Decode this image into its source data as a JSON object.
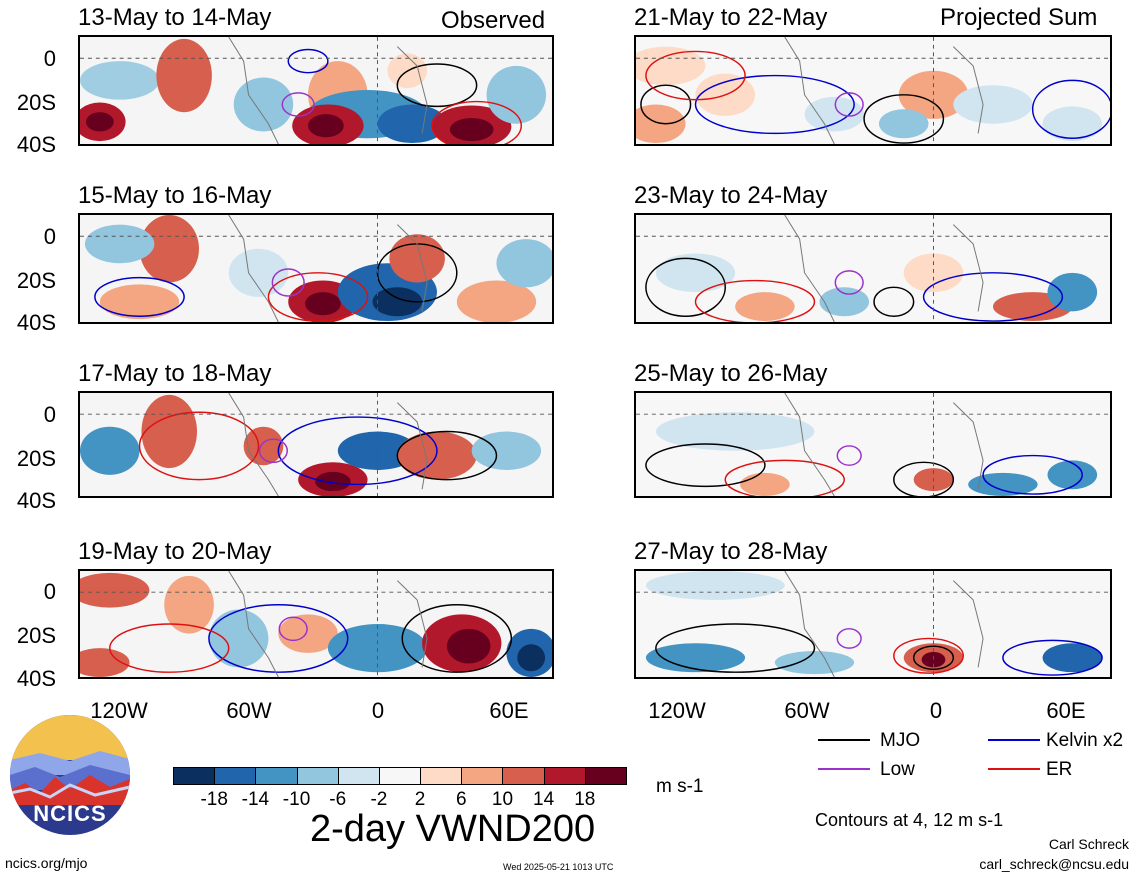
{
  "headers": {
    "observed": "Observed",
    "projected": "Projected Sum"
  },
  "left_panels": [
    {
      "title": "13-May to 14-May"
    },
    {
      "title": "15-May to 16-May"
    },
    {
      "title": "17-May to 18-May"
    },
    {
      "title": "19-May to 20-May"
    }
  ],
  "right_panels": [
    {
      "title": "21-May to 22-May"
    },
    {
      "title": "23-May to 24-May"
    },
    {
      "title": "25-May to 26-May"
    },
    {
      "title": "27-May to 28-May"
    }
  ],
  "y_ticks": [
    "0",
    "20S",
    "40S"
  ],
  "x_ticks": [
    "120W",
    "60W",
    "0",
    "60E"
  ],
  "legend": {
    "items": [
      {
        "label": "MJO",
        "color": "#000000"
      },
      {
        "label": "Kelvin x2",
        "color": "#0000cc"
      },
      {
        "label": "Low",
        "color": "#9933cc"
      },
      {
        "label": "ER",
        "color": "#dd1111"
      }
    ],
    "contour_note": "Contours at 4, 12 m s-1"
  },
  "colorbar": {
    "colors": [
      "#0b2f5e",
      "#2166ac",
      "#4393c3",
      "#92c5de",
      "#d1e5f0",
      "#f7f7f7",
      "#fddbc7",
      "#f4a582",
      "#d6604d",
      "#b2182b",
      "#67001f"
    ],
    "labels": [
      "-18",
      "-14",
      "-10",
      "-6",
      "-2",
      "2",
      "6",
      "10",
      "14",
      "18"
    ],
    "units": "m s-1"
  },
  "main_title": "2-day VWND200",
  "logo_text": "NCICS",
  "footer": {
    "site": "ncics.org/mjo",
    "timestamp": "Wed 2025-05-21 1013 UTC",
    "author": "Carl Schreck",
    "email": "carl_schreck@ncsu.edu"
  }
}
